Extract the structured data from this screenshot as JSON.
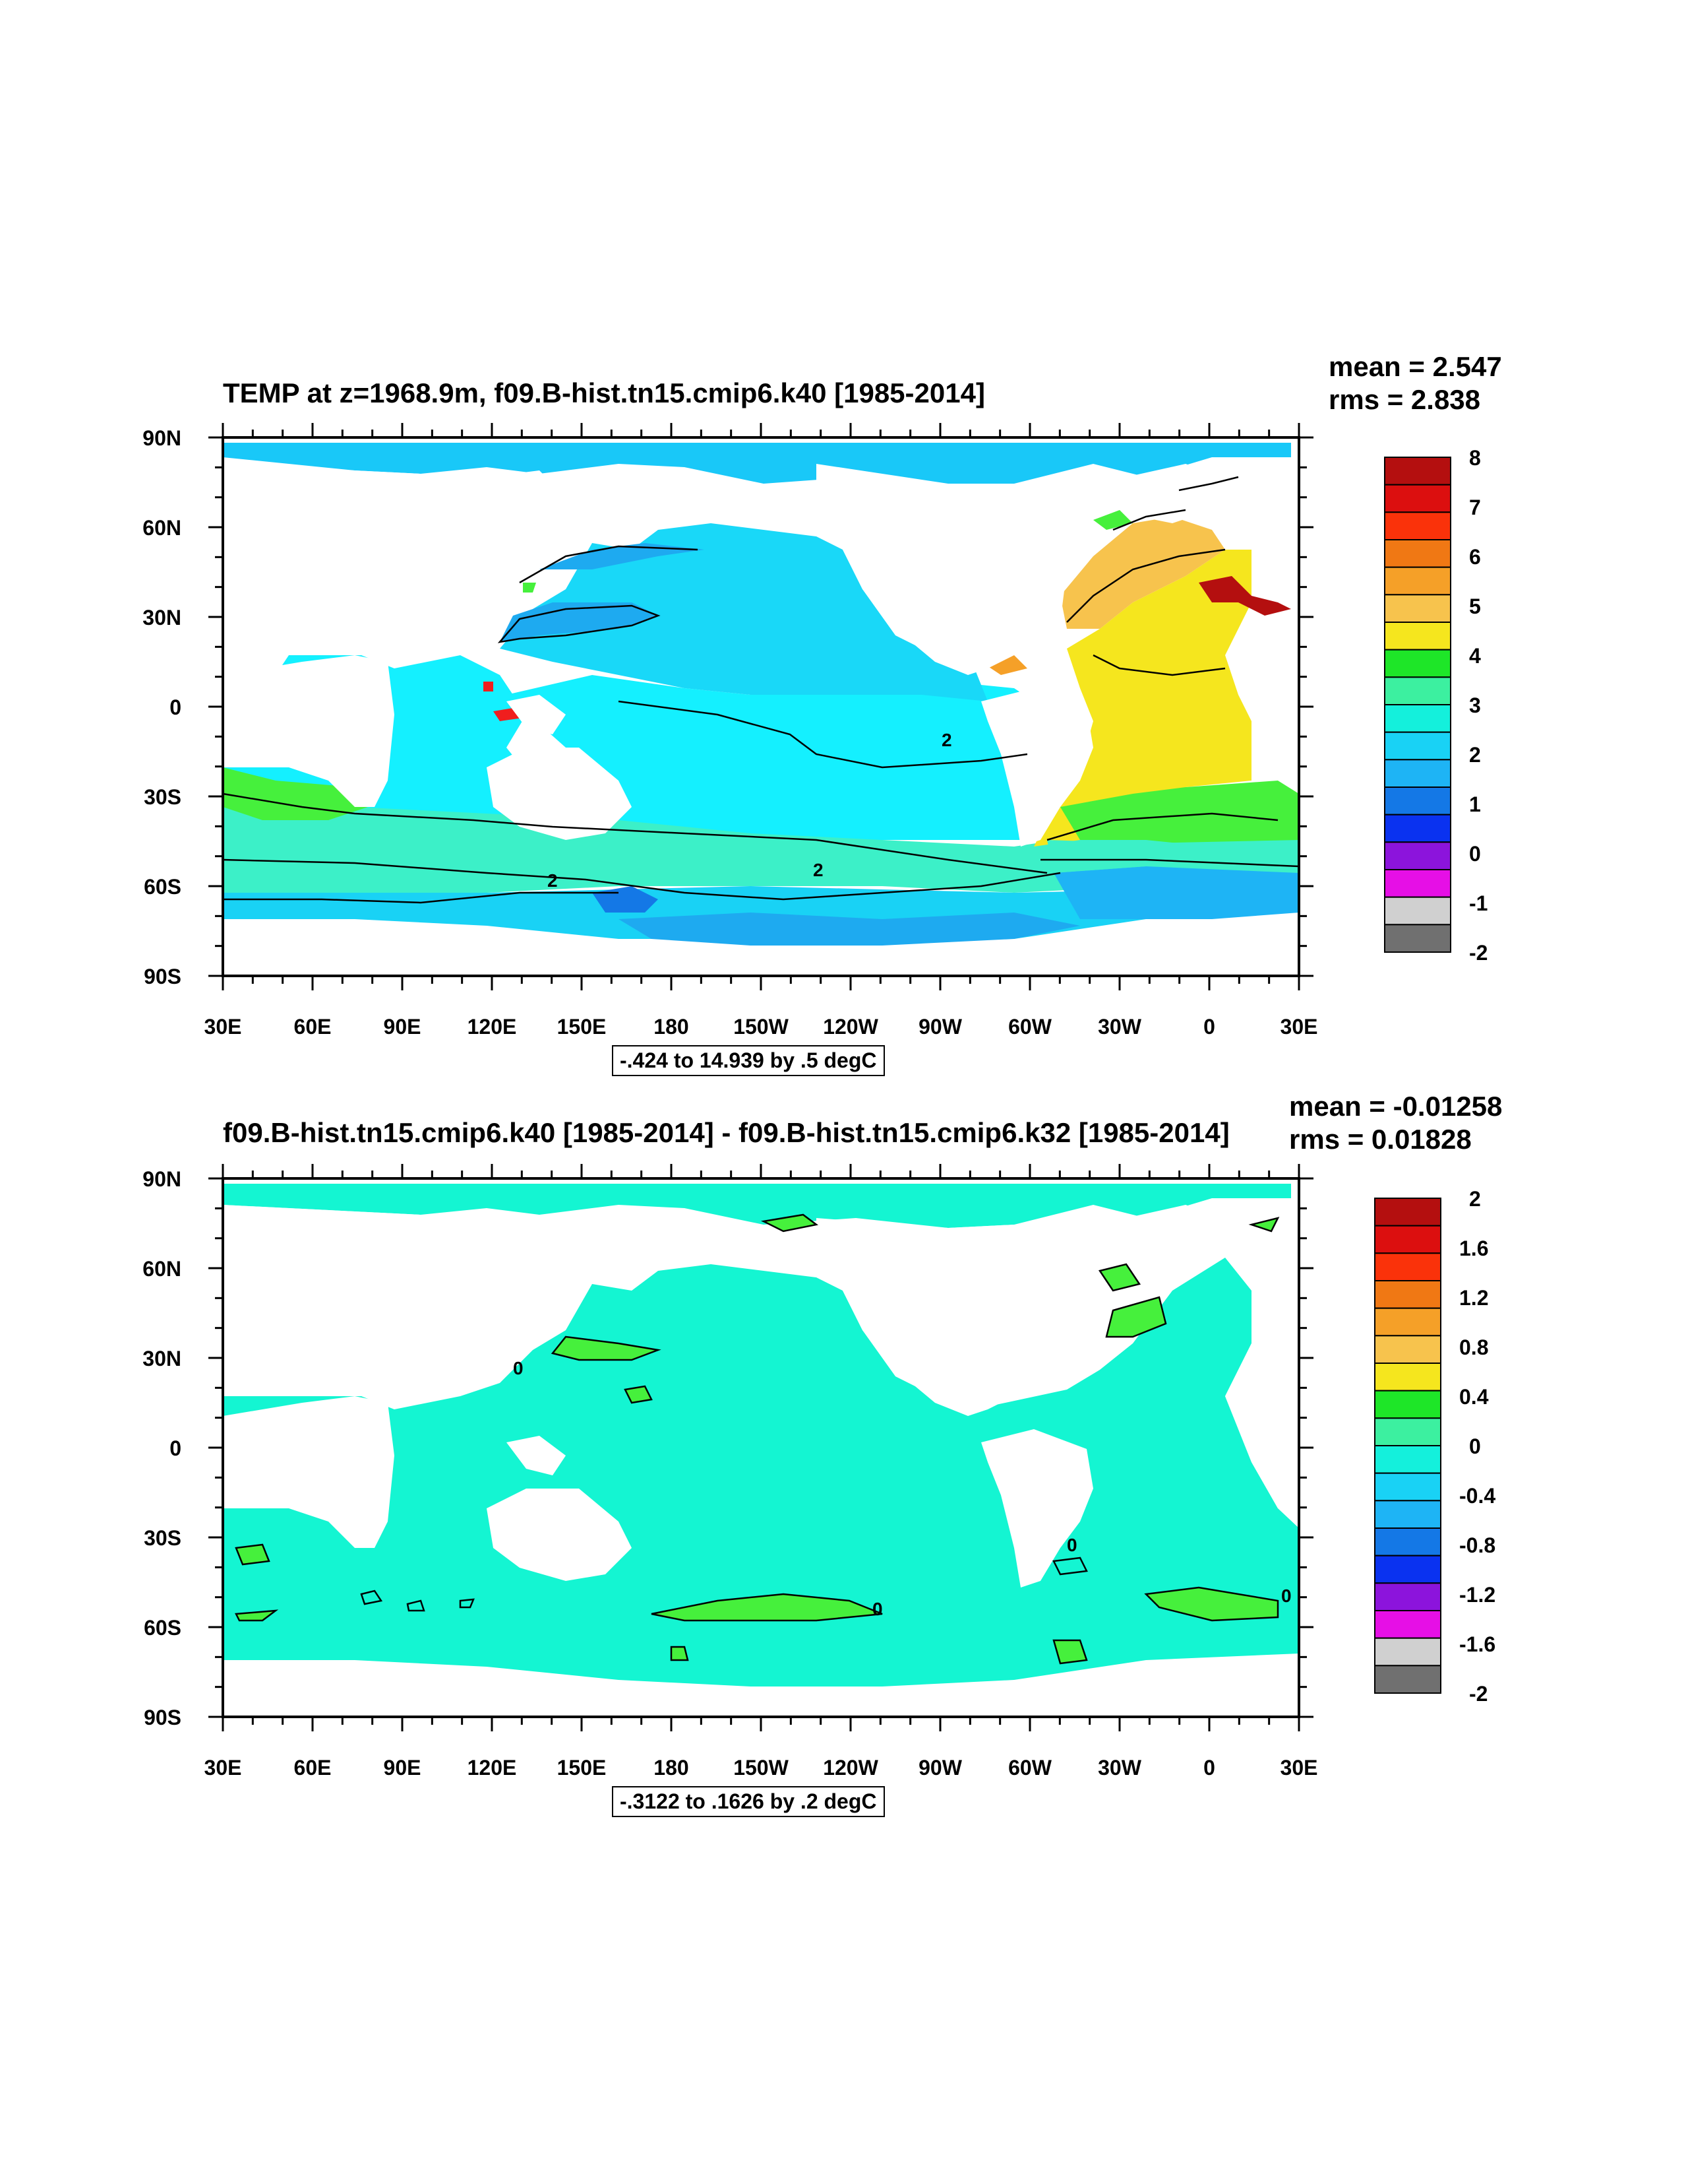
{
  "chart_data": [
    {
      "type": "heatmap",
      "title": "TEMP at z=1968.9m, f09.B-hist.tn15.cmip6.k40 [1985-2014]",
      "mean_label": "mean = 2.547",
      "rms_label": "rms = 2.838",
      "info": "-.424 to 14.939 by .5 degC",
      "xticks": [
        "30E",
        "60E",
        "90E",
        "120E",
        "150E",
        "180",
        "150W",
        "120W",
        "90W",
        "60W",
        "30W",
        "0",
        "30E"
      ],
      "yticks": [
        "90N",
        "60N",
        "30N",
        "0",
        "30S",
        "60S",
        "90S"
      ],
      "xlim": [
        30,
        390
      ],
      "ylim": [
        -90,
        90
      ],
      "colorbar_labels": [
        "8",
        "7",
        "6",
        "5",
        "4",
        "3",
        "2",
        "1",
        "0",
        "-1",
        "-2"
      ],
      "colorbar_colors": [
        "#b40f0f",
        "#dc0f0f",
        "#fa320a",
        "#f07814",
        "#f5a028",
        "#f7c34d",
        "#f5e61e",
        "#1ee628",
        "#3cf0a0",
        "#14f0dc",
        "#19d2f5",
        "#1eb4f5",
        "#1478e6",
        "#0a32f0",
        "#8c14dc",
        "#e60fe6",
        "#d0d0d0",
        "#707070"
      ],
      "contour_labels": [
        "2",
        "2",
        "2"
      ],
      "regions": {
        "ocean_mid_lat": 2.0,
        "north_pacific_band": 1.4,
        "antarctic_shelf": 1.0,
        "south_atlantic_subtropics": 4.0,
        "north_atlantic": 4.5,
        "mediterranean_outflow": 8.0,
        "gulf_of_mexico": 5.5,
        "arctic": 1.7,
        "southern_ocean_band": 2.5
      }
    },
    {
      "type": "heatmap",
      "title": "f09.B-hist.tn15.cmip6.k40 [1985-2014] - f09.B-hist.tn15.cmip6.k32 [1985-2014]",
      "mean_label": "mean = -0.01258",
      "rms_label": "rms = 0.01828",
      "info": "-.3122 to .1626 by .2 degC",
      "xticks": [
        "30E",
        "60E",
        "90E",
        "120E",
        "150E",
        "180",
        "150W",
        "120W",
        "90W",
        "60W",
        "30W",
        "0",
        "30E"
      ],
      "yticks": [
        "90N",
        "60N",
        "30N",
        "0",
        "30S",
        "60S",
        "90S"
      ],
      "xlim": [
        30,
        390
      ],
      "ylim": [
        -90,
        90
      ],
      "colorbar_labels": [
        "2",
        "1.6",
        "1.2",
        "0.8",
        "0.4",
        "0",
        "-0.4",
        "-0.8",
        "-1.2",
        "-1.6",
        "-2"
      ],
      "colorbar_colors": [
        "#b40f0f",
        "#dc0f0f",
        "#fa320a",
        "#f07814",
        "#f5a028",
        "#f7c34d",
        "#f5e61e",
        "#1ee628",
        "#3cf0a0",
        "#14f0dc",
        "#19d2f5",
        "#1eb4f5",
        "#1478e6",
        "#0a32f0",
        "#8c14dc",
        "#e60fe6",
        "#d0d0d0",
        "#707070"
      ],
      "contour_labels": [
        "0",
        "0",
        "0",
        "0"
      ],
      "regions": {
        "ocean_mid_lat": 0.0,
        "north_pacific_band": 0.1,
        "southern_pacific_band": 0.1,
        "south_atlantic_band": 0.1,
        "labrador_sea": 0.1
      }
    }
  ],
  "colors": {
    "land": "#ffffff",
    "frame": "#000000"
  }
}
